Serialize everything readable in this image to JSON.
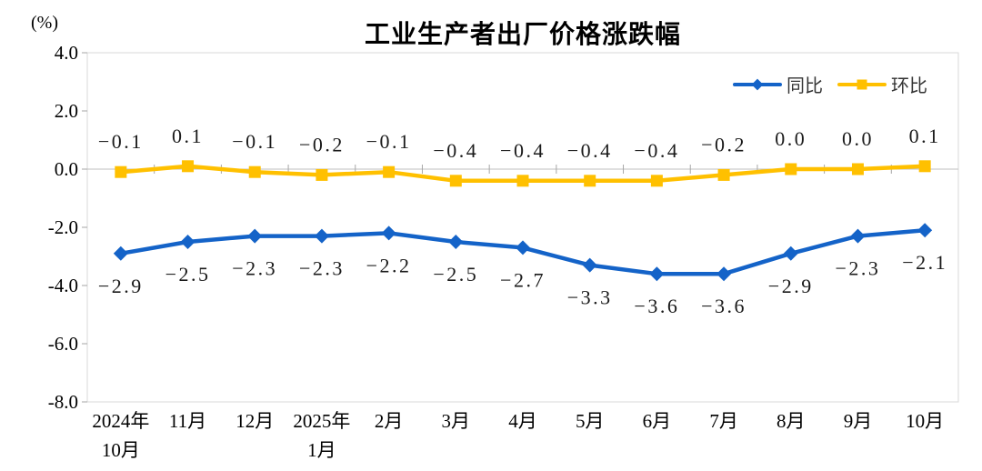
{
  "chart_data": {
    "type": "line",
    "title": "工业生产者出厂价格涨跌幅",
    "unit_label": "(%)",
    "ylim": [
      -8.0,
      4.0
    ],
    "ytick_step": 2.0,
    "yticks": [
      "4.0",
      "2.0",
      "0.0",
      "-2.0",
      "-4.0",
      "-6.0",
      "-8.0"
    ],
    "grid": "zero-line-only",
    "legend_position": "top-right",
    "categories": [
      "2024年\n10月",
      "11月",
      "12月",
      "2025年\n1月",
      "2月",
      "3月",
      "4月",
      "5月",
      "6月",
      "7月",
      "8月",
      "9月",
      "10月"
    ],
    "series": [
      {
        "name": "同比",
        "color": "#1463C8",
        "marker": "diamond",
        "label_position": "below",
        "values": [
          -2.9,
          -2.5,
          -2.3,
          -2.3,
          -2.2,
          -2.5,
          -2.7,
          -3.3,
          -3.6,
          -3.6,
          -2.9,
          -2.3,
          -2.1
        ],
        "labels": [
          "-2.9",
          "-2.5",
          "-2.3",
          "-2.3",
          "-2.2",
          "-2.5",
          "-2.7",
          "-3.3",
          "-3.6",
          "-3.6",
          "-2.9",
          "-2.3",
          "-2.1"
        ]
      },
      {
        "name": "环比",
        "color": "#FFC000",
        "marker": "square",
        "label_position": "above",
        "values": [
          -0.1,
          0.1,
          -0.1,
          -0.2,
          -0.1,
          -0.4,
          -0.4,
          -0.4,
          -0.4,
          -0.2,
          0.0,
          0.0,
          0.1
        ],
        "labels": [
          "-0.1",
          "0.1",
          "-0.1",
          "-0.2",
          "-0.1",
          "-0.4",
          "-0.4",
          "-0.4",
          "-0.4",
          "-0.2",
          "0.0",
          "0.0",
          "0.1"
        ]
      }
    ],
    "colors": {
      "plot_border": "#D9D9D9",
      "zero_line": "#BFBFBF",
      "tick": "#A6A6A6",
      "axis_text": "#000000",
      "data_label_text": "#1A1A1A"
    }
  }
}
